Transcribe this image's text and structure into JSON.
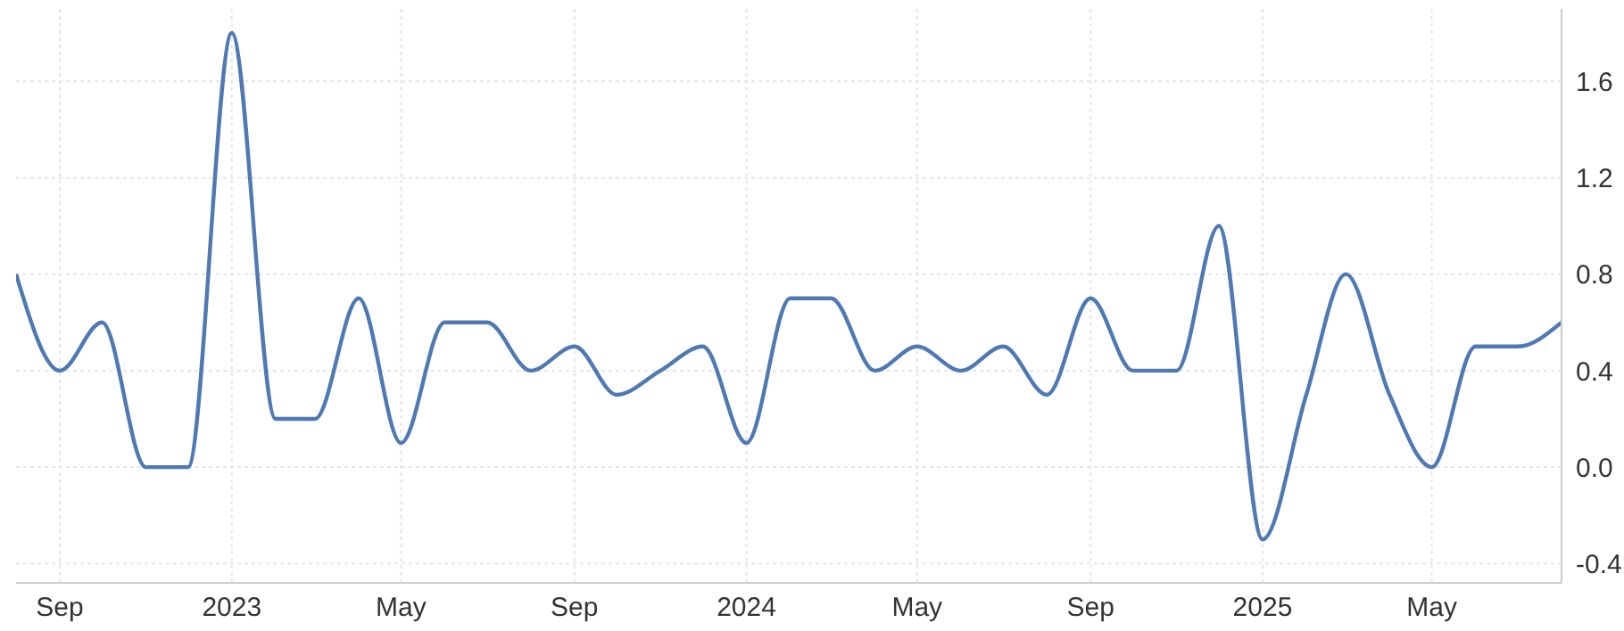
{
  "chart_data": {
    "type": "line",
    "x": [
      "2022-08",
      "2022-09",
      "2022-10",
      "2022-11",
      "2022-12",
      "2023-01",
      "2023-02",
      "2023-03",
      "2023-04",
      "2023-05",
      "2023-06",
      "2023-07",
      "2023-08",
      "2023-09",
      "2023-10",
      "2023-11",
      "2023-12",
      "2024-01",
      "2024-02",
      "2024-03",
      "2024-04",
      "2024-05",
      "2024-06",
      "2024-07",
      "2024-08",
      "2024-09",
      "2024-10",
      "2024-11",
      "2024-12",
      "2025-01",
      "2025-02",
      "2025-03",
      "2025-04",
      "2025-05",
      "2025-06",
      "2025-07",
      "2025-08"
    ],
    "series": [
      {
        "color": "#4e79b3",
        "values": [
          0.8,
          0.4,
          0.6,
          0.0,
          0.0,
          1.8,
          0.2,
          0.2,
          0.7,
          0.1,
          0.6,
          0.6,
          0.4,
          0.5,
          0.3,
          0.4,
          0.5,
          0.1,
          0.7,
          0.7,
          0.4,
          0.5,
          0.4,
          0.5,
          0.3,
          0.7,
          0.4,
          0.4,
          1.0,
          -0.3,
          0.3,
          0.8,
          0.3,
          0.0,
          0.5,
          0.5,
          0.6
        ]
      }
    ],
    "xlim": [
      "2022-08",
      "2025-08"
    ],
    "xticks": [
      {
        "value": "2022-09",
        "label": "Sep"
      },
      {
        "value": "2023-01",
        "label": "2023"
      },
      {
        "value": "2023-05",
        "label": "May"
      },
      {
        "value": "2023-09",
        "label": "Sep"
      },
      {
        "value": "2024-01",
        "label": "2024"
      },
      {
        "value": "2024-05",
        "label": "May"
      },
      {
        "value": "2024-09",
        "label": "Sep"
      },
      {
        "value": "2025-01",
        "label": "2025"
      },
      {
        "value": "2025-05",
        "label": "May"
      }
    ],
    "ylim": [
      -0.48,
      1.9
    ],
    "yticks": [
      -0.4,
      {
        "value": 0,
        "label": "0.0"
      },
      0.4,
      0.8,
      1.2,
      1.6
    ],
    "grid": true,
    "legend": false,
    "marker": "none",
    "line_style": "solid"
  }
}
